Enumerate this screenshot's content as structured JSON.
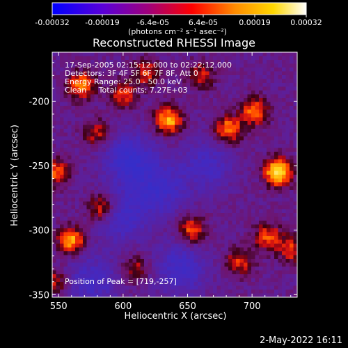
{
  "colorbar": {
    "ticks": [
      "-0.00032",
      "-0.00019",
      "-6.4e-05",
      "6.4e-05",
      "0.00019",
      "0.00032"
    ],
    "unit_label": "(photons cm⁻² s⁻¹ asec⁻²)",
    "colormap": "blue-purple-red-orange-yellow-white",
    "colors": [
      "#0000ff",
      "#6a00c8",
      "#b0007a",
      "#ff0000",
      "#ff8c00",
      "#ffd200",
      "#ffffff"
    ]
  },
  "annotations": {
    "line1": "17-Sep-2005 02:15:12.000 to 02:22:12.000",
    "line2": "Detectors: 3F 4F 5F 6F 7F 8F, Att 0",
    "line3": "Energy Range: 25.0 - 50.0 keV",
    "line4": "Clean     Total counts: 7.27E+03",
    "peak": "Position of Peak = [719,-257]"
  },
  "footer": {
    "date": "2-May-2022 16:11"
  },
  "chart_data": {
    "type": "heatmap",
    "title": "Reconstructed RHESSI Image",
    "xlabel": "Heliocentric X (arcsec)",
    "ylabel": "Heliocentric Y (arcsec)",
    "xlim": [
      545,
      735
    ],
    "ylim": [
      -352,
      -162
    ],
    "xticks": [
      "550",
      "600",
      "650",
      "700"
    ],
    "yticks": [
      "-200",
      "-250",
      "-300",
      "-350"
    ],
    "xtick_values": [
      550,
      600,
      650,
      700
    ],
    "ytick_values": [
      -200,
      -250,
      -300,
      -350
    ],
    "colorbar_range": [
      -0.00032,
      0.00032
    ],
    "peak_position": [
      719,
      -257
    ],
    "bright_sources": [
      {
        "x": 720,
        "y": -255,
        "level": 1.0
      },
      {
        "x": 635,
        "y": -215,
        "level": 0.8
      },
      {
        "x": 568,
        "y": -188,
        "level": 0.7
      },
      {
        "x": 560,
        "y": -308,
        "level": 0.75
      },
      {
        "x": 548,
        "y": -255,
        "level": 0.6
      },
      {
        "x": 583,
        "y": -283,
        "level": 0.6
      },
      {
        "x": 682,
        "y": -222,
        "level": 0.7
      },
      {
        "x": 702,
        "y": -208,
        "level": 0.65
      },
      {
        "x": 653,
        "y": -300,
        "level": 0.6
      },
      {
        "x": 712,
        "y": -305,
        "level": 0.55
      },
      {
        "x": 690,
        "y": -325,
        "level": 0.5
      },
      {
        "x": 618,
        "y": -178,
        "level": 0.5
      },
      {
        "x": 600,
        "y": -195,
        "level": 0.5
      },
      {
        "x": 730,
        "y": -315,
        "level": 0.5
      },
      {
        "x": 548,
        "y": -340,
        "level": 0.45
      },
      {
        "x": 610,
        "y": -330,
        "level": 0.4
      },
      {
        "x": 660,
        "y": -180,
        "level": 0.45
      },
      {
        "x": 580,
        "y": -225,
        "level": 0.45
      }
    ],
    "dark_regions": [
      {
        "x": 605,
        "y": -245,
        "level": -0.6
      },
      {
        "x": 628,
        "y": -268,
        "level": -0.5
      },
      {
        "x": 645,
        "y": -330,
        "level": -0.5
      },
      {
        "x": 600,
        "y": -290,
        "level": -0.45
      },
      {
        "x": 665,
        "y": -250,
        "level": -0.4
      },
      {
        "x": 575,
        "y": -340,
        "level": -0.45
      }
    ]
  }
}
